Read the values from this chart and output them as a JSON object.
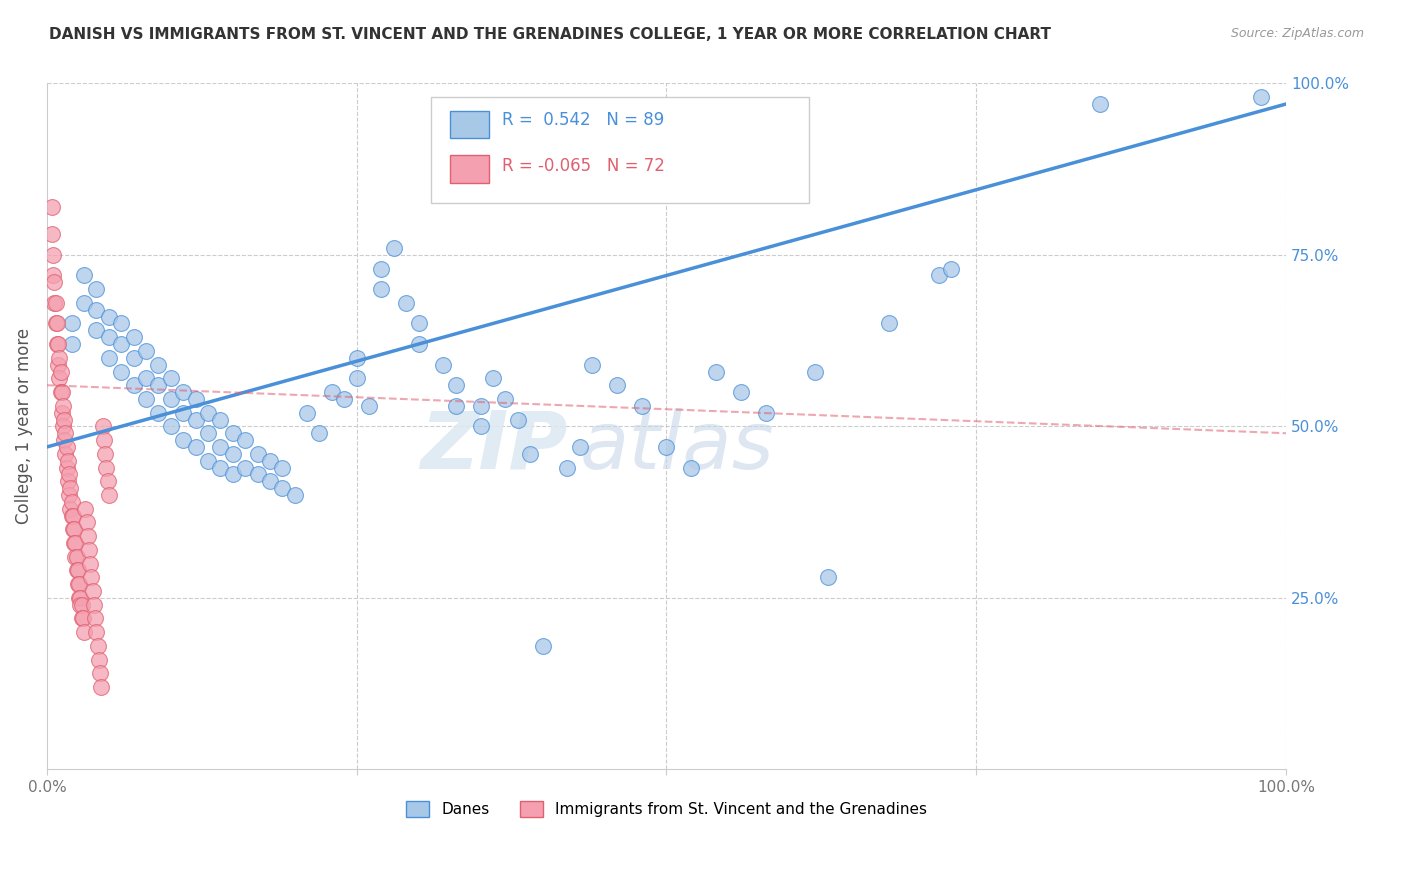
{
  "title": "DANISH VS IMMIGRANTS FROM ST. VINCENT AND THE GRENADINES COLLEGE, 1 YEAR OR MORE CORRELATION CHART",
  "source": "Source: ZipAtlas.com",
  "ylabel": "College, 1 year or more",
  "watermark_zip": "ZIP",
  "watermark_atlas": "atlas",
  "blue_R": 0.542,
  "blue_N": 89,
  "pink_R": -0.065,
  "pink_N": 72,
  "blue_color": "#a8c8e8",
  "blue_line_color": "#4a90d9",
  "pink_color": "#f4a0b0",
  "pink_line_color": "#e06070",
  "blue_scatter": [
    [
      0.02,
      0.62
    ],
    [
      0.02,
      0.65
    ],
    [
      0.03,
      0.68
    ],
    [
      0.03,
      0.72
    ],
    [
      0.04,
      0.64
    ],
    [
      0.04,
      0.67
    ],
    [
      0.04,
      0.7
    ],
    [
      0.05,
      0.6
    ],
    [
      0.05,
      0.63
    ],
    [
      0.05,
      0.66
    ],
    [
      0.06,
      0.58
    ],
    [
      0.06,
      0.62
    ],
    [
      0.06,
      0.65
    ],
    [
      0.07,
      0.56
    ],
    [
      0.07,
      0.6
    ],
    [
      0.07,
      0.63
    ],
    [
      0.08,
      0.54
    ],
    [
      0.08,
      0.57
    ],
    [
      0.08,
      0.61
    ],
    [
      0.09,
      0.52
    ],
    [
      0.09,
      0.56
    ],
    [
      0.09,
      0.59
    ],
    [
      0.1,
      0.5
    ],
    [
      0.1,
      0.54
    ],
    [
      0.1,
      0.57
    ],
    [
      0.11,
      0.48
    ],
    [
      0.11,
      0.52
    ],
    [
      0.11,
      0.55
    ],
    [
      0.12,
      0.47
    ],
    [
      0.12,
      0.51
    ],
    [
      0.12,
      0.54
    ],
    [
      0.13,
      0.45
    ],
    [
      0.13,
      0.49
    ],
    [
      0.13,
      0.52
    ],
    [
      0.14,
      0.44
    ],
    [
      0.14,
      0.47
    ],
    [
      0.14,
      0.51
    ],
    [
      0.15,
      0.43
    ],
    [
      0.15,
      0.46
    ],
    [
      0.15,
      0.49
    ],
    [
      0.16,
      0.44
    ],
    [
      0.16,
      0.48
    ],
    [
      0.17,
      0.43
    ],
    [
      0.17,
      0.46
    ],
    [
      0.18,
      0.42
    ],
    [
      0.18,
      0.45
    ],
    [
      0.19,
      0.41
    ],
    [
      0.19,
      0.44
    ],
    [
      0.2,
      0.4
    ],
    [
      0.21,
      0.52
    ],
    [
      0.22,
      0.49
    ],
    [
      0.23,
      0.55
    ],
    [
      0.24,
      0.54
    ],
    [
      0.25,
      0.6
    ],
    [
      0.25,
      0.57
    ],
    [
      0.26,
      0.53
    ],
    [
      0.27,
      0.7
    ],
    [
      0.27,
      0.73
    ],
    [
      0.28,
      0.76
    ],
    [
      0.29,
      0.68
    ],
    [
      0.3,
      0.65
    ],
    [
      0.3,
      0.62
    ],
    [
      0.32,
      0.59
    ],
    [
      0.33,
      0.56
    ],
    [
      0.33,
      0.53
    ],
    [
      0.35,
      0.53
    ],
    [
      0.35,
      0.5
    ],
    [
      0.36,
      0.57
    ],
    [
      0.37,
      0.54
    ],
    [
      0.38,
      0.51
    ],
    [
      0.39,
      0.46
    ],
    [
      0.4,
      0.18
    ],
    [
      0.42,
      0.44
    ],
    [
      0.43,
      0.47
    ],
    [
      0.44,
      0.59
    ],
    [
      0.46,
      0.56
    ],
    [
      0.48,
      0.53
    ],
    [
      0.5,
      0.47
    ],
    [
      0.52,
      0.44
    ],
    [
      0.54,
      0.58
    ],
    [
      0.56,
      0.55
    ],
    [
      0.58,
      0.52
    ],
    [
      0.62,
      0.58
    ],
    [
      0.63,
      0.28
    ],
    [
      0.68,
      0.65
    ],
    [
      0.72,
      0.72
    ],
    [
      0.73,
      0.73
    ],
    [
      0.85,
      0.97
    ],
    [
      0.98,
      0.98
    ]
  ],
  "pink_scatter": [
    [
      0.004,
      0.78
    ],
    [
      0.004,
      0.82
    ],
    [
      0.005,
      0.72
    ],
    [
      0.005,
      0.75
    ],
    [
      0.006,
      0.68
    ],
    [
      0.006,
      0.71
    ],
    [
      0.007,
      0.65
    ],
    [
      0.007,
      0.68
    ],
    [
      0.008,
      0.62
    ],
    [
      0.008,
      0.65
    ],
    [
      0.009,
      0.62
    ],
    [
      0.009,
      0.59
    ],
    [
      0.01,
      0.6
    ],
    [
      0.01,
      0.57
    ],
    [
      0.011,
      0.58
    ],
    [
      0.011,
      0.55
    ],
    [
      0.012,
      0.55
    ],
    [
      0.012,
      0.52
    ],
    [
      0.013,
      0.53
    ],
    [
      0.013,
      0.5
    ],
    [
      0.014,
      0.51
    ],
    [
      0.014,
      0.48
    ],
    [
      0.015,
      0.49
    ],
    [
      0.015,
      0.46
    ],
    [
      0.016,
      0.47
    ],
    [
      0.016,
      0.44
    ],
    [
      0.017,
      0.45
    ],
    [
      0.017,
      0.42
    ],
    [
      0.018,
      0.43
    ],
    [
      0.018,
      0.4
    ],
    [
      0.019,
      0.41
    ],
    [
      0.019,
      0.38
    ],
    [
      0.02,
      0.39
    ],
    [
      0.02,
      0.37
    ],
    [
      0.021,
      0.37
    ],
    [
      0.021,
      0.35
    ],
    [
      0.022,
      0.35
    ],
    [
      0.022,
      0.33
    ],
    [
      0.023,
      0.33
    ],
    [
      0.023,
      0.31
    ],
    [
      0.024,
      0.31
    ],
    [
      0.024,
      0.29
    ],
    [
      0.025,
      0.29
    ],
    [
      0.025,
      0.27
    ],
    [
      0.026,
      0.27
    ],
    [
      0.026,
      0.25
    ],
    [
      0.027,
      0.25
    ],
    [
      0.027,
      0.24
    ],
    [
      0.028,
      0.24
    ],
    [
      0.028,
      0.22
    ],
    [
      0.029,
      0.22
    ],
    [
      0.03,
      0.2
    ],
    [
      0.031,
      0.38
    ],
    [
      0.032,
      0.36
    ],
    [
      0.033,
      0.34
    ],
    [
      0.034,
      0.32
    ],
    [
      0.035,
      0.3
    ],
    [
      0.036,
      0.28
    ],
    [
      0.037,
      0.26
    ],
    [
      0.038,
      0.24
    ],
    [
      0.039,
      0.22
    ],
    [
      0.04,
      0.2
    ],
    [
      0.041,
      0.18
    ],
    [
      0.042,
      0.16
    ],
    [
      0.043,
      0.14
    ],
    [
      0.044,
      0.12
    ],
    [
      0.045,
      0.5
    ],
    [
      0.046,
      0.48
    ],
    [
      0.047,
      0.46
    ],
    [
      0.048,
      0.44
    ],
    [
      0.049,
      0.42
    ],
    [
      0.05,
      0.4
    ]
  ],
  "blue_trend_x": [
    0.0,
    1.0
  ],
  "blue_trend_y": [
    0.47,
    0.97
  ],
  "pink_trend_x": [
    0.0,
    1.0
  ],
  "pink_trend_y": [
    0.56,
    0.49
  ],
  "xlim": [
    0.0,
    1.0
  ],
  "ylim": [
    0.0,
    1.0
  ],
  "grid_vals": [
    0.25,
    0.5,
    0.75,
    1.0
  ],
  "right_tick_labels": [
    "25.0%",
    "50.0%",
    "75.0%",
    "100.0%"
  ],
  "bottom_legend_labels": [
    "Danes",
    "Immigrants from St. Vincent and the Grenadines"
  ]
}
